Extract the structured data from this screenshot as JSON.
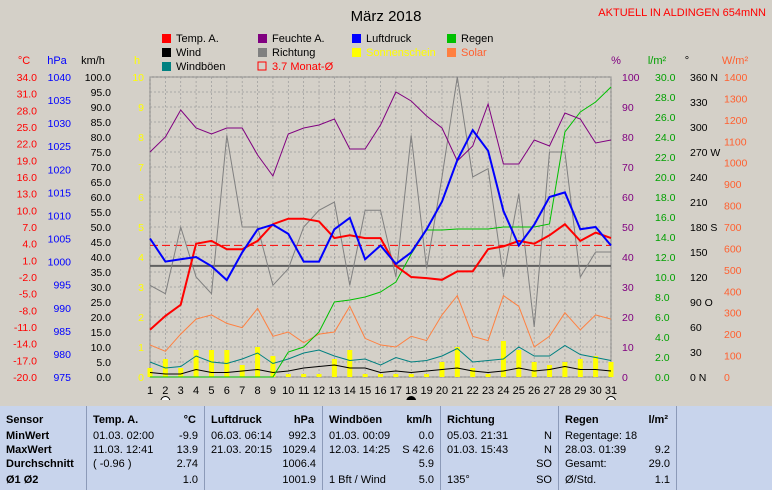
{
  "header": {
    "title": "März 2018",
    "right_title": "AKTUELL IN ALDINGEN 654mNN"
  },
  "legend": [
    {
      "label": "Temp. A.",
      "color": "#ff0000",
      "style": "fill"
    },
    {
      "label": "Feuchte A.",
      "color": "#800080",
      "style": "fill"
    },
    {
      "label": "Luftdruck",
      "color": "#0000ff",
      "style": "fill"
    },
    {
      "label": "Regen",
      "color": "#00c000",
      "style": "fill"
    },
    {
      "label": "Wind",
      "color": "#000000",
      "style": "fill"
    },
    {
      "label": "Richtung",
      "color": "#808080",
      "style": "fill"
    },
    {
      "label": "Sonnenschein",
      "color": "#ffff00",
      "style": "fill"
    },
    {
      "label": "Solar",
      "color": "#ff8040",
      "style": "fill"
    },
    {
      "label": "Windböen",
      "color": "#008080",
      "style": "fill"
    },
    {
      "label": "3.7 Monat-Ø",
      "color": "#ff0000",
      "style": "outline"
    }
  ],
  "axes": {
    "left_units": [
      "°C",
      "hPa",
      "km/h",
      "h"
    ],
    "right_units": [
      "%",
      "l/m²",
      "°",
      "W/m²"
    ],
    "temp_ticks": [
      "34.0",
      "31.0",
      "28.0",
      "25.0",
      "22.0",
      "19.0",
      "16.0",
      "13.0",
      "10.0",
      "7.0",
      "4.0",
      "1.0",
      "-2.0",
      "-5.0",
      "-8.0",
      "-11.0",
      "-14.0",
      "-17.0",
      "-20.0"
    ],
    "hpa_ticks": [
      "1040",
      "1035",
      "1030",
      "1025",
      "1020",
      "1015",
      "1010",
      "1005",
      "1000",
      "995",
      "990",
      "985",
      "980",
      "975"
    ],
    "kmh_ticks": [
      "100.0",
      "95.0",
      "90.0",
      "85.0",
      "80.0",
      "75.0",
      "70.0",
      "65.0",
      "60.0",
      "55.0",
      "50.0",
      "45.0",
      "40.0",
      "35.0",
      "30.0",
      "25.0",
      "20.0",
      "15.0",
      "10.0",
      "5.0",
      "0.0"
    ],
    "h_ticks": [
      "10",
      "9",
      "8",
      "7",
      "6",
      "5",
      "4",
      "3",
      "2",
      "1",
      "0"
    ],
    "pct_ticks": [
      "100",
      "90",
      "80",
      "70",
      "60",
      "50",
      "40",
      "30",
      "20",
      "10",
      "0"
    ],
    "lm2_ticks": [
      "30.0",
      "28.0",
      "26.0",
      "24.0",
      "22.0",
      "20.0",
      "18.0",
      "16.0",
      "14.0",
      "12.0",
      "10.0",
      "8.0",
      "6.0",
      "4.0",
      "2.0",
      "0.0"
    ],
    "deg_ticks": [
      "360 N",
      "330",
      "300",
      "270 W",
      "240",
      "210",
      "180 S",
      "150",
      "120",
      "90 O",
      "60",
      "30",
      "0  N"
    ],
    "wm2_ticks": [
      "1400",
      "1300",
      "1200",
      "1100",
      "1000",
      "900",
      "800",
      "700",
      "600",
      "500",
      "400",
      "300",
      "200",
      "100",
      "0"
    ],
    "x_ticks": [
      "1",
      "2",
      "3",
      "4",
      "5",
      "6",
      "7",
      "8",
      "9",
      "10",
      "11",
      "12",
      "13",
      "14",
      "15",
      "16",
      "17",
      "18",
      "19",
      "20",
      "21",
      "22",
      "23",
      "24",
      "25",
      "26",
      "27",
      "28",
      "29",
      "30",
      "31"
    ]
  },
  "chart_data": {
    "type": "line",
    "title": "März 2018",
    "x": [
      1,
      2,
      3,
      4,
      5,
      6,
      7,
      8,
      9,
      10,
      11,
      12,
      13,
      14,
      15,
      16,
      17,
      18,
      19,
      20,
      21,
      22,
      23,
      24,
      25,
      26,
      27,
      28,
      29,
      30,
      31
    ],
    "xlabel": "",
    "month_avg_temp": 3.7,
    "series": [
      {
        "name": "Temp. A.",
        "axis": "°C",
        "ylim": [
          -20,
          34
        ],
        "color": "#ff0000",
        "values": [
          -11.5,
          -9.0,
          -7.0,
          4.0,
          4.5,
          3.0,
          3.0,
          4.5,
          7.5,
          8.5,
          8.5,
          8.0,
          5.0,
          5.5,
          5.0,
          5.0,
          0.0,
          -2.0,
          -2.2,
          -2.5,
          -1.0,
          -1.0,
          3.0,
          3.5,
          4.5,
          4.0,
          5.5,
          7.5,
          4.5,
          6.0,
          5.0
        ]
      },
      {
        "name": "Feuchte A.",
        "axis": "%",
        "ylim": [
          0,
          100
        ],
        "color": "#800080",
        "values": [
          75,
          80,
          89,
          83,
          81,
          83,
          83,
          74,
          67,
          81,
          83,
          84,
          86,
          76,
          76,
          84,
          95,
          92,
          87,
          83,
          72,
          77,
          91,
          71,
          71,
          79,
          77,
          88,
          86,
          78,
          79
        ]
      },
      {
        "name": "Luftdruck",
        "axis": "hPa",
        "ylim": [
          975,
          1040
        ],
        "color": "#0000ff",
        "values": [
          1005,
          1000,
          1000.5,
          1001,
          999,
          996,
          1002,
          1007,
          1008,
          1006,
          1000,
          1000,
          1007,
          1009.5,
          1000.5,
          1003.5,
          999.5,
          1002,
          1007,
          1013,
          1022,
          1028.5,
          1024,
          1011,
          1003.5,
          1008,
          1014,
          1015,
          1007,
          1007.5,
          1003.5
        ]
      },
      {
        "name": "Regen",
        "axis": "l/m²",
        "ylim": [
          0,
          30
        ],
        "color": "#00c000",
        "values": [
          0,
          0,
          0,
          0,
          0,
          0,
          0,
          0,
          0,
          2.5,
          3.0,
          4.5,
          7.5,
          7.7,
          8.0,
          8.5,
          9.5,
          12.3,
          14.7,
          14.7,
          14.8,
          14.8,
          14.8,
          15.0,
          15.0,
          15.0,
          15.3,
          24.5,
          26.5,
          27.5,
          29.0
        ]
      },
      {
        "name": "Wind",
        "axis": "km/h",
        "ylim": [
          0,
          100
        ],
        "color": "#000000",
        "values": [
          1.5,
          1.0,
          1.0,
          2.5,
          1.5,
          1.5,
          2.0,
          2.5,
          1.5,
          2.0,
          3.0,
          3.5,
          4.0,
          3.0,
          3.0,
          1.5,
          2.0,
          1.5,
          2.0,
          2.5,
          3.0,
          2.0,
          1.5,
          2.0,
          3.0,
          2.0,
          2.5,
          3.5,
          2.5,
          2.5,
          2.0
        ]
      },
      {
        "name": "Windböen",
        "axis": "km/h",
        "ylim": [
          0,
          100
        ],
        "color": "#008080",
        "values": [
          5.0,
          3.0,
          3.5,
          7.0,
          5.0,
          4.5,
          6.0,
          8.0,
          4.5,
          6.0,
          8.0,
          9.0,
          7.0,
          5.5,
          6.0,
          4.0,
          6.5,
          5.0,
          5.5,
          7.0,
          9.5,
          5.0,
          5.5,
          6.0,
          10.0,
          7.0,
          7.0,
          10.5,
          7.5,
          6.5,
          5.5
        ]
      },
      {
        "name": "Richtung",
        "axis": "°",
        "ylim": [
          0,
          360
        ],
        "color": "#808080",
        "values": [
          110,
          100,
          180,
          120,
          100,
          290,
          180,
          180,
          110,
          130,
          180,
          200,
          210,
          110,
          200,
          200,
          120,
          290,
          130,
          240,
          360,
          240,
          250,
          120,
          220,
          60,
          270,
          270,
          120,
          150,
          150
        ]
      },
      {
        "name": "Sonnenschein",
        "axis": "h",
        "ylim": [
          0,
          10
        ],
        "color": "#ffff00",
        "style": "bar",
        "values": [
          0.3,
          0.6,
          0.3,
          0.9,
          0.9,
          0.9,
          0.4,
          1.0,
          0.7,
          0.1,
          0.1,
          0.1,
          0.6,
          0.9,
          0.1,
          0.1,
          0.1,
          0.1,
          0.1,
          0.5,
          1.0,
          0.3,
          0.1,
          1.2,
          0.9,
          0.5,
          0.4,
          0.5,
          0.6,
          0.7,
          0.5
        ]
      },
      {
        "name": "Solar",
        "axis": "W/m²",
        "ylim": [
          0,
          1400
        ],
        "color": "#ff8040",
        "values": [
          150,
          120,
          200,
          270,
          290,
          250,
          230,
          320,
          190,
          210,
          160,
          200,
          210,
          330,
          180,
          150,
          140,
          190,
          170,
          290,
          380,
          190,
          170,
          380,
          330,
          140,
          190,
          300,
          220,
          290,
          270
        ]
      }
    ]
  },
  "stats": {
    "sensor": {
      "header": "Sensor",
      "rows": [
        "MinWert",
        "MaxWert",
        "Durchschnitt",
        "Ø1 Ø2"
      ]
    },
    "temp": {
      "header": "Temp. A.",
      "unit": "°C",
      "rows": [
        {
          "l": "01.03.  02:00",
          "v": "-9.9"
        },
        {
          "l": "11.03.  12:41",
          "v": "13.9"
        },
        {
          "l": "( -0.96 )",
          "v": "2.74"
        },
        {
          "l": "",
          "v": "1.0"
        }
      ]
    },
    "pressure": {
      "header": "Luftdruck",
      "unit": "hPa",
      "rows": [
        {
          "l": "06.03.  06:14",
          "v": "992.3"
        },
        {
          "l": "21.03.  20:15",
          "v": "1029.4"
        },
        {
          "l": "",
          "v": "1006.4"
        },
        {
          "l": "",
          "v": "1001.9"
        }
      ]
    },
    "gust": {
      "header": "Windböen",
      "unit": "km/h",
      "rows": [
        {
          "l": "01.03.  00:09",
          "v": "0.0"
        },
        {
          "l": "12.03.  14:25",
          "v": "S 42.6"
        },
        {
          "l": "",
          "v": "5.9"
        },
        {
          "l": "1 Bft / Wind",
          "v": "5.0"
        }
      ]
    },
    "direction": {
      "header": "Richtung",
      "unit": "",
      "rows": [
        {
          "l": "05.03.  21:31",
          "v": "N"
        },
        {
          "l": "01.03.  15:43",
          "v": "N"
        },
        {
          "l": "",
          "v": "SO"
        },
        {
          "l": "135°",
          "v": "SO"
        }
      ]
    },
    "rain": {
      "header": "Regen",
      "unit": "l/m²",
      "rows": [
        {
          "l": "Regentage: 18",
          "v": ""
        },
        {
          "l": "28.03.  01:39",
          "v": "9.2"
        },
        {
          "l": "Gesamt:",
          "v": "29.0"
        },
        {
          "l": "Ø/Std.",
          "v": "1.1"
        }
      ]
    }
  }
}
